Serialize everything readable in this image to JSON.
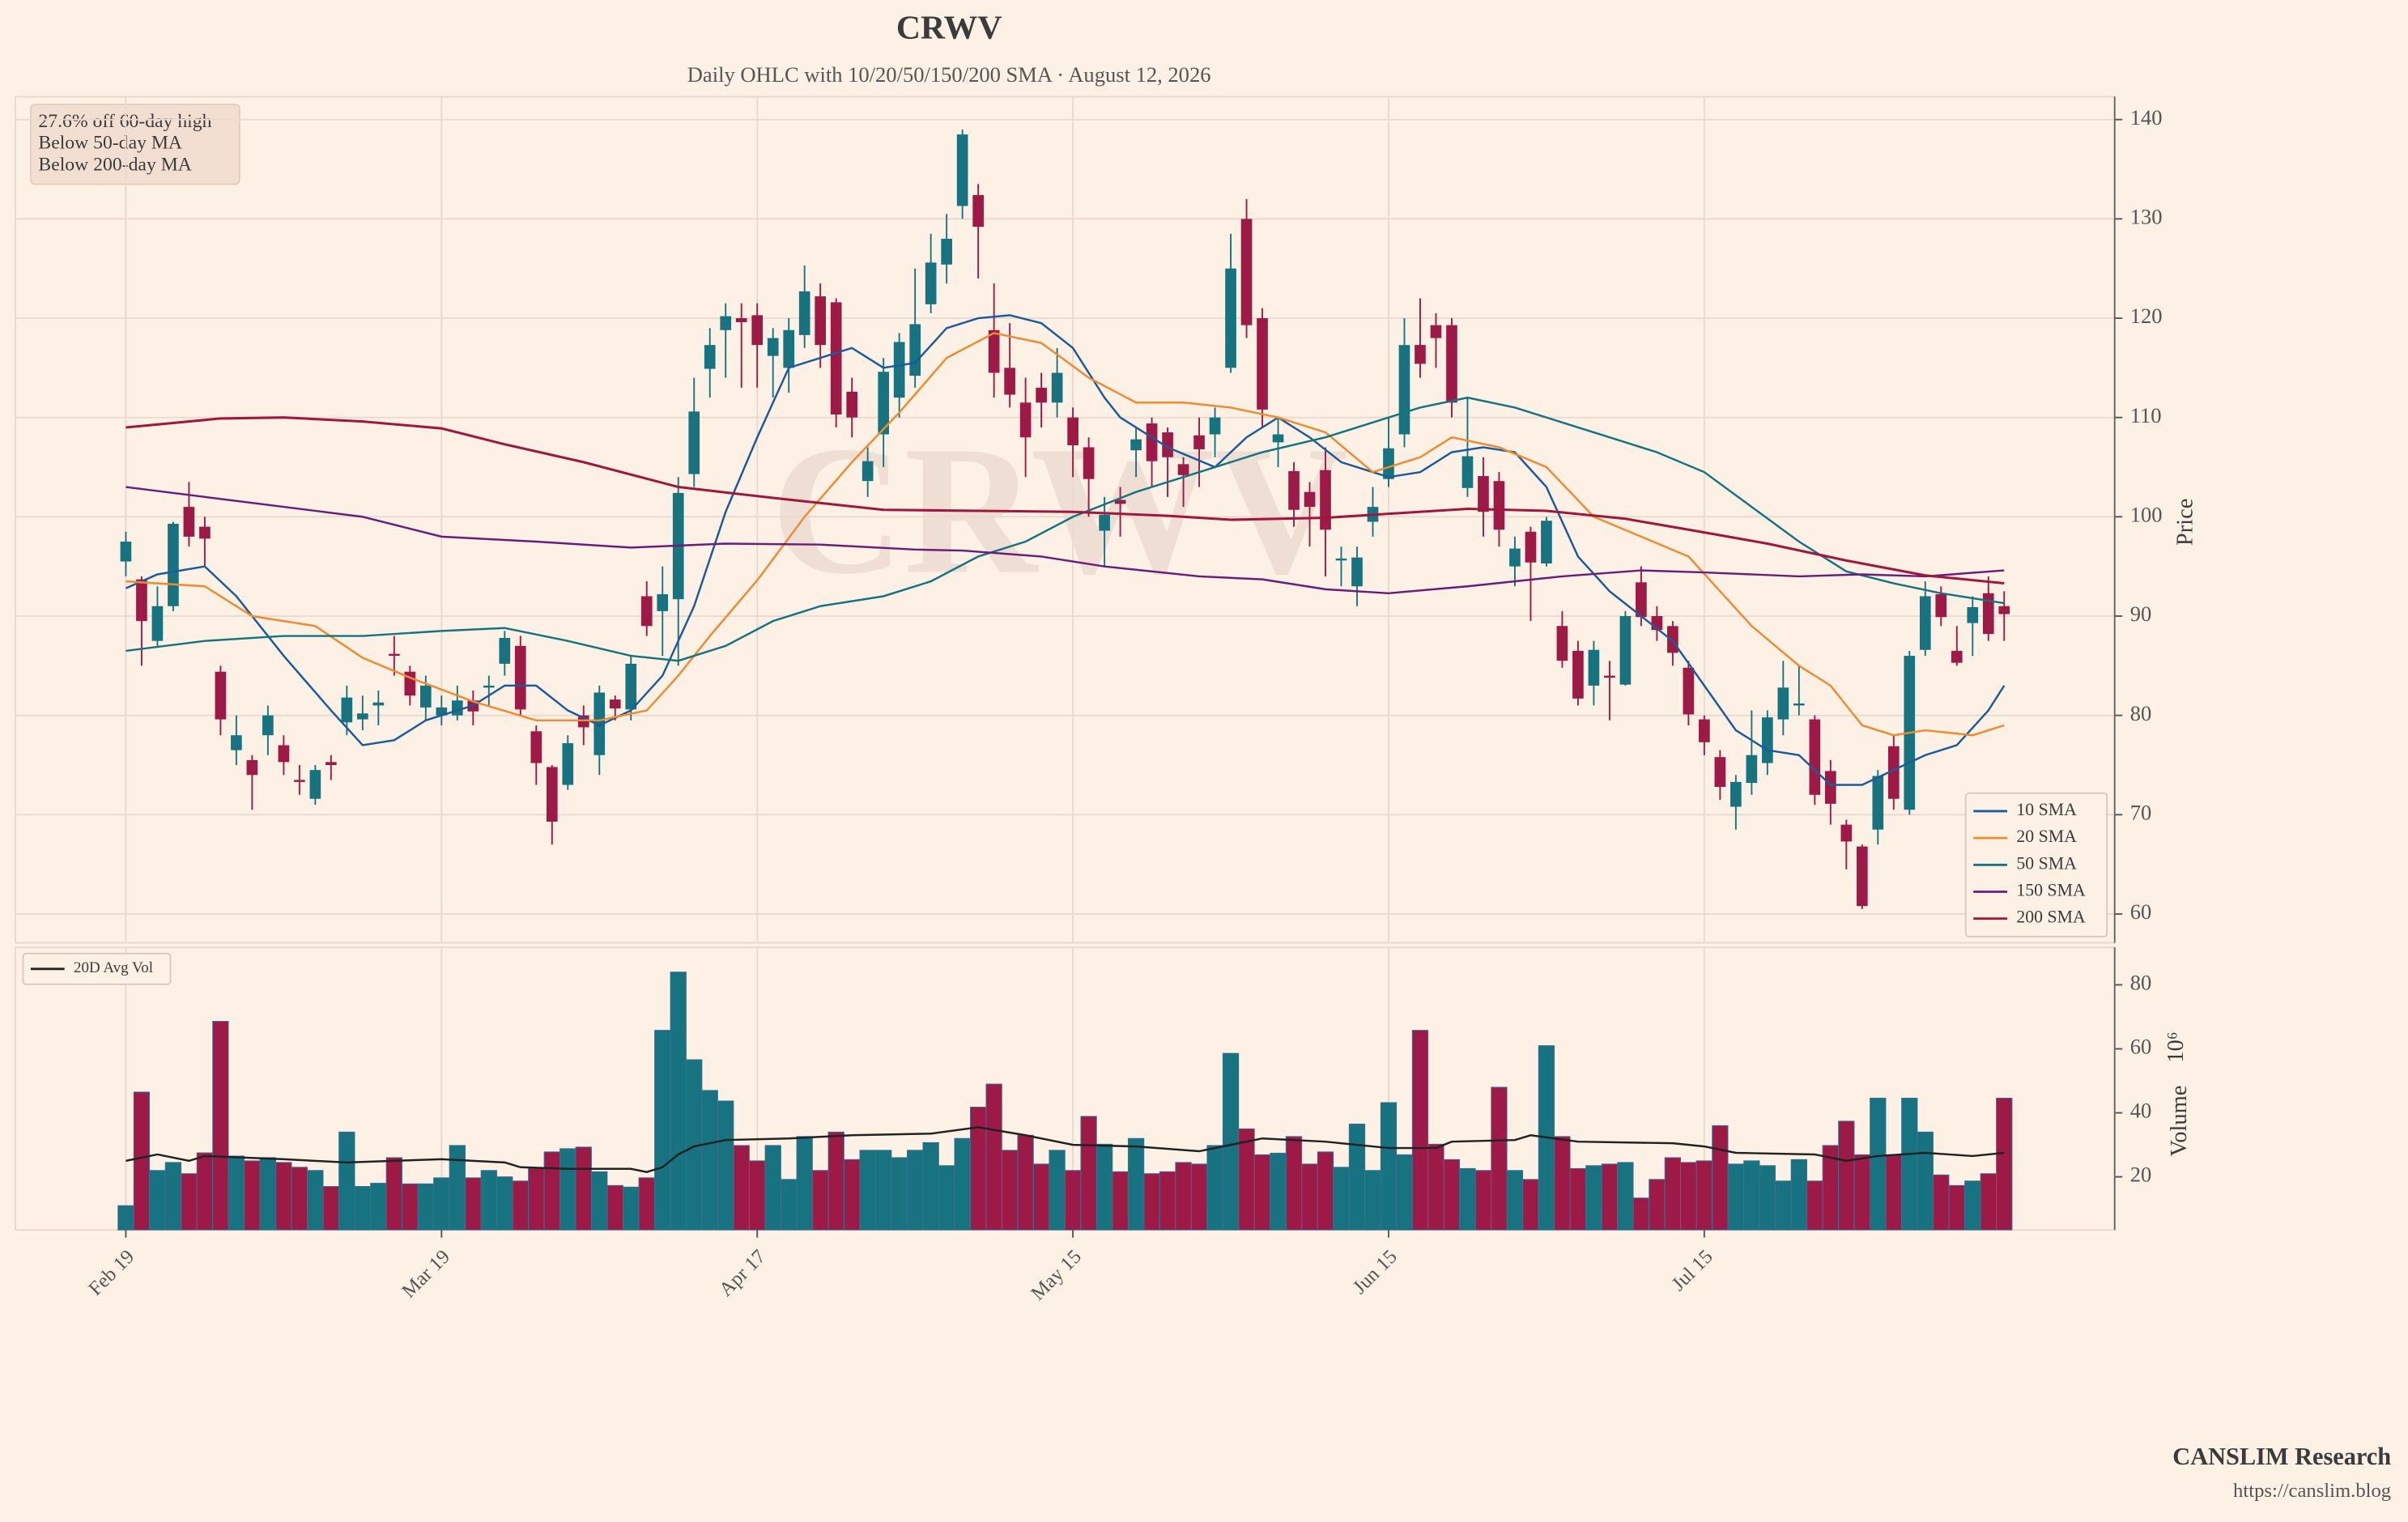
{
  "chart_data": [
    {
      "type": "candlestick",
      "title": "CRWV",
      "subtitle": "Daily OHLC with 10/20/50/150/200 SMA  ·  August 12, 2026",
      "watermark": "CRWV",
      "annotations": [
        "27.6% off 60-day high",
        "Below 50-day MA",
        "Below 200-day MA"
      ],
      "ylabel": "Price",
      "xlim": [
        -7,
        126
      ],
      "xticks": [
        0,
        20,
        40,
        60,
        80,
        100
      ],
      "ylim": [
        57.1,
        142.3
      ],
      "yticks": [
        60,
        70,
        80,
        90,
        100,
        110,
        120,
        130,
        140
      ],
      "grid": true,
      "legend": "lower right",
      "up_color": "#16737f",
      "down_color": "#9c1a45",
      "open": [
        95.5,
        93.7,
        87.5,
        91,
        101,
        99,
        84.4,
        76.5,
        75.5,
        78,
        77,
        73.5,
        71.6,
        75.3,
        79.3,
        79.6,
        81,
        86.2,
        84.4,
        80.8,
        80,
        80,
        81.5,
        82.8,
        85.2,
        87,
        78.4,
        74.8,
        73,
        80,
        76,
        81.6,
        80.6,
        92,
        90.5,
        91.7,
        104.3,
        114.9,
        118.8,
        120,
        120.3,
        116.2,
        115,
        118.3,
        122.2,
        121.6,
        112.6,
        103.6,
        108.3,
        112,
        114.2,
        121.4,
        125.4,
        131.3,
        132.4,
        118.8,
        115,
        111.5,
        113,
        111.5,
        110,
        107,
        98.6,
        101.7,
        106.7,
        109.4,
        108.5,
        105.3,
        108.2,
        108.3,
        115,
        130,
        120,
        107.5,
        104.6,
        102.5,
        104.7,
        95.6,
        93,
        99.5,
        103.8,
        108.3,
        117.3,
        119.3,
        119.3,
        102.9,
        104.1,
        103.6,
        95,
        98.5,
        95.3,
        89,
        86.5,
        83,
        84,
        83.1,
        93.4,
        90,
        89,
        84.8,
        79.6,
        75.8,
        70.8,
        73.2,
        75.2,
        79.6,
        81,
        79.6,
        74.4,
        69,
        66.8,
        68.5,
        76.9,
        70.5,
        86.6,
        92.2,
        86.5,
        89.3,
        92.3,
        91
      ],
      "high": [
        98.5,
        94,
        93,
        99.5,
        103.5,
        100,
        85,
        80,
        76,
        81,
        78,
        75,
        75,
        76,
        83,
        82,
        82.5,
        88,
        85,
        84,
        82,
        83,
        82.5,
        84,
        88.5,
        88,
        79,
        75,
        78,
        81,
        83,
        82,
        86,
        93.5,
        95,
        104,
        114,
        119,
        121.5,
        121.5,
        121.5,
        119,
        120,
        125.3,
        123.5,
        122,
        114,
        107,
        116,
        118.5,
        125,
        128.5,
        130.5,
        139,
        133.5,
        123.5,
        119.5,
        114,
        114.5,
        117,
        111,
        108,
        102,
        103,
        109,
        110,
        109,
        106,
        110,
        111,
        128.5,
        132,
        121,
        110,
        105.5,
        103.5,
        107,
        97,
        97,
        103,
        110,
        120,
        122,
        120.5,
        120,
        112,
        106,
        104.5,
        98,
        99,
        100,
        90.5,
        87.5,
        87.5,
        85.5,
        90.5,
        95,
        91,
        89.5,
        85.5,
        80,
        76.5,
        74,
        80.5,
        80.5,
        85.5,
        85,
        80,
        75.5,
        69.5,
        67,
        74.5,
        78,
        86.5,
        93.5,
        93,
        89,
        92,
        94,
        92.5
      ],
      "low": [
        94,
        85,
        87,
        90.5,
        97,
        95,
        78,
        75,
        70.5,
        76,
        74,
        72,
        71,
        73.5,
        78,
        78.5,
        79,
        84,
        81,
        79.5,
        79,
        79.5,
        79,
        81,
        84,
        80,
        73,
        67,
        72.5,
        77,
        74,
        79.5,
        79.5,
        88,
        86,
        85,
        103,
        112,
        114,
        113,
        113,
        112,
        112.5,
        117,
        115,
        109,
        108,
        102,
        105,
        110,
        113,
        120.5,
        123.5,
        130,
        124,
        112,
        111,
        104,
        109,
        110,
        104,
        100,
        95,
        98,
        104,
        103,
        102,
        101,
        103,
        106,
        114.5,
        118,
        109,
        105,
        99,
        97,
        94,
        93,
        91,
        98,
        103,
        107,
        114,
        115,
        110,
        102,
        98,
        97,
        93,
        89.5,
        95,
        84.8,
        81,
        81,
        79.5,
        83,
        89,
        87.5,
        85,
        79,
        76,
        71.5,
        68.5,
        72,
        74,
        78,
        80,
        71,
        69,
        64.5,
        60.5,
        67,
        70.5,
        70,
        86,
        89,
        85,
        86,
        87.5,
        87.5
      ],
      "close": [
        97.5,
        89.5,
        91,
        99.3,
        98,
        97.8,
        79.6,
        78,
        74,
        80,
        75.3,
        73.3,
        74.5,
        75,
        81.8,
        80.2,
        81.3,
        86,
        82,
        83,
        80.8,
        81.5,
        80.4,
        83,
        87.8,
        80.6,
        75.2,
        69.3,
        77.2,
        78.8,
        82.3,
        80.7,
        85.2,
        89,
        92.2,
        102.4,
        110.6,
        117.3,
        120.2,
        119.6,
        117.3,
        118,
        118.8,
        122.7,
        117.3,
        110.3,
        110,
        105.6,
        114.6,
        117.6,
        119.4,
        125.6,
        128,
        138.5,
        129.2,
        114.5,
        112.3,
        108,
        111.5,
        114.5,
        107.2,
        103.8,
        100.2,
        101.3,
        107.8,
        105.6,
        106,
        104.2,
        106.8,
        110,
        125,
        119.3,
        110.8,
        108.3,
        100.7,
        101,
        98.7,
        95.8,
        95.9,
        101,
        106.9,
        117.3,
        115.4,
        118,
        111.5,
        106.1,
        100.5,
        98.7,
        96.8,
        95.4,
        99.6,
        85.5,
        81.7,
        86.6,
        83.8,
        90,
        89.9,
        88.6,
        86.3,
        80.1,
        77.3,
        72.8,
        73.3,
        76,
        79.8,
        82.8,
        81.2,
        72,
        71.1,
        67.3,
        60.8,
        73.9,
        71.6,
        86,
        92,
        89.9,
        85.3,
        90.9,
        88.2,
        90.2
      ],
      "series": [
        {
          "name": "10 SMA",
          "color": "#1d5a9c",
          "x": [
            0,
            2,
            5,
            7,
            10,
            13,
            15,
            17,
            19,
            22,
            24,
            26,
            28,
            30,
            32,
            34,
            36,
            38,
            40,
            42,
            44,
            46,
            48,
            50,
            52,
            54,
            56,
            58,
            60,
            62,
            63,
            66,
            69,
            71,
            73,
            75,
            77,
            79,
            80,
            82,
            84,
            86,
            88,
            90,
            92,
            94,
            96,
            98,
            100,
            102,
            104,
            106,
            108,
            110,
            112,
            114,
            116,
            118,
            119
          ],
          "values": [
            92.8,
            94.2,
            95,
            92,
            86,
            80.5,
            77,
            77.5,
            79.5,
            81,
            83,
            83,
            80.5,
            79,
            80.5,
            84,
            91,
            100.5,
            108,
            115,
            116,
            117,
            115,
            115.5,
            119,
            120,
            120.3,
            119.5,
            117,
            112,
            110,
            107,
            105,
            108,
            110,
            108,
            105.5,
            104.5,
            104,
            104.5,
            106.5,
            107,
            106.5,
            103,
            96,
            92.5,
            90,
            87.5,
            83,
            78.5,
            76.5,
            76,
            73,
            73,
            74.5,
            76,
            77,
            80.5,
            83
          ]
        },
        {
          "name": "20 SMA",
          "color": "#f28a2e",
          "x": [
            0,
            5,
            8,
            12,
            15,
            18,
            22,
            26,
            30,
            33,
            35,
            37,
            40,
            43,
            46,
            49,
            52,
            55,
            58,
            61,
            64,
            67,
            70,
            73,
            76,
            79,
            82,
            84,
            87,
            90,
            93,
            96,
            99,
            103,
            106,
            108,
            110,
            112,
            114,
            117,
            119
          ],
          "values": [
            93.5,
            93,
            90,
            89,
            85.8,
            83.8,
            81.4,
            79.5,
            79.5,
            80.5,
            84,
            88,
            93.6,
            100,
            105.5,
            110.5,
            116,
            118.5,
            117.5,
            114,
            111.5,
            111.5,
            111,
            110,
            108.5,
            104.5,
            106,
            108,
            107,
            105,
            100,
            98,
            96,
            89,
            85,
            83,
            79,
            78,
            78.5,
            78,
            79
          ]
        },
        {
          "name": "50 SMA",
          "color": "#16737f",
          "x": [
            0,
            5,
            10,
            15,
            20,
            24,
            28,
            32,
            35,
            38,
            41,
            44,
            48,
            51,
            54,
            57,
            60,
            64,
            68,
            72,
            76,
            79,
            82,
            85,
            88,
            91,
            95,
            97,
            100,
            103,
            106,
            109,
            112,
            115,
            119
          ],
          "values": [
            86.5,
            87.5,
            88,
            88,
            88.5,
            88.8,
            87.5,
            86,
            85.5,
            87,
            89.5,
            91,
            92,
            93.5,
            96,
            97.5,
            100,
            102.5,
            104.5,
            106.5,
            108,
            109.5,
            111,
            112,
            111,
            109.5,
            107.5,
            106.5,
            104.5,
            101,
            97.5,
            94.5,
            93.3,
            92.3,
            91.3
          ]
        },
        {
          "name": "150 SMA",
          "color": "#6b1c78",
          "x": [
            0,
            5,
            10,
            15,
            20,
            26,
            32,
            38,
            44,
            50,
            53,
            58,
            62,
            68,
            72,
            76,
            80,
            85,
            91,
            96,
            100,
            106,
            110,
            114,
            119
          ],
          "values": [
            103,
            102,
            101,
            100,
            98,
            97.5,
            96.9,
            97.3,
            97.2,
            96.7,
            96.6,
            96,
            95,
            94,
            93.7,
            92.7,
            92.3,
            93,
            94,
            94.6,
            94.4,
            94,
            94.2,
            94,
            94.6
          ]
        },
        {
          "name": "200 SMA",
          "color": "#a0173e",
          "x": [
            0,
            6,
            10,
            15,
            20,
            24,
            29,
            35,
            41,
            48,
            54,
            60,
            66,
            70,
            76,
            80,
            85,
            90,
            95,
            99,
            104,
            109,
            114,
            119
          ],
          "values": [
            109,
            109.9,
            110,
            109.6,
            108.9,
            107.3,
            105.5,
            103,
            101.9,
            100.7,
            100.6,
            100.5,
            100.1,
            99.7,
            99.9,
            100.3,
            100.8,
            100.6,
            99.8,
            98.7,
            97.3,
            95.6,
            94.1,
            93.3
          ]
        }
      ]
    },
    {
      "type": "bar",
      "ylabel": "Volume",
      "scale_label": "10⁶",
      "xlim": [
        -7,
        126
      ],
      "xticks": [
        {
          "value": 0,
          "label": "Feb 19"
        },
        {
          "value": 20,
          "label": "Mar 19"
        },
        {
          "value": 40,
          "label": "Apr 17"
        },
        {
          "value": 60,
          "label": "May 15"
        },
        {
          "value": 80,
          "label": "Jun 15"
        },
        {
          "value": 100,
          "label": "Jul 15"
        }
      ],
      "ylim": [
        3.4,
        91.7
      ],
      "yticks": [
        20,
        40,
        60,
        80
      ],
      "grid": "x",
      "legend": "upper left",
      "values": [
        11,
        46.5,
        22,
        24.5,
        21,
        27.5,
        68.6,
        26.5,
        25,
        26,
        24.5,
        23,
        22,
        17,
        34,
        17,
        18,
        26,
        17.8,
        17.8,
        19.7,
        29.8,
        19.7,
        22,
        20,
        18.7,
        22.6,
        27.8,
        28.8,
        29.3,
        21.6,
        17.3,
        16.8,
        19.7,
        65.8,
        84,
        56.6,
        47,
        43.7,
        29.8,
        25,
        29.8,
        19.2,
        32.6,
        22,
        34,
        25.4,
        28.3,
        28.3,
        26,
        28.3,
        30.7,
        23.5,
        32,
        41.8,
        49,
        28.3,
        33,
        24,
        28.3,
        22,
        38.9,
        30.2,
        21.6,
        32,
        21,
        21.6,
        24.5,
        24,
        29.8,
        58.6,
        35,
        26.9,
        27.4,
        32.6,
        24,
        27.8,
        23,
        36.5,
        22,
        43.2,
        26.9,
        65.8,
        30.2,
        25.4,
        22.6,
        22,
        48,
        22,
        19.2,
        61,
        32.6,
        22.6,
        23.5,
        24,
        24.5,
        13.4,
        19.2,
        26,
        24.5,
        25,
        36,
        24,
        25,
        23.5,
        18.7,
        25.4,
        18.7,
        29.8,
        37.4,
        26.9,
        44.6,
        26.9,
        44.6,
        34,
        20.6,
        17.3,
        18.7,
        21,
        44.6
      ],
      "series": [
        {
          "name": "20D Avg Vol",
          "color": "#222222",
          "x": [
            0,
            2,
            4,
            5,
            10,
            14,
            17,
            20,
            24,
            25,
            28,
            32,
            33,
            34,
            35,
            36,
            38,
            42,
            46,
            51,
            54,
            57,
            60,
            64,
            68,
            70,
            72,
            76,
            80,
            83,
            84,
            88,
            89,
            92,
            98,
            100,
            102,
            107,
            109,
            111,
            114,
            117,
            119
          ],
          "values": [
            25,
            27,
            25,
            26.5,
            25.5,
            24.5,
            25,
            25.5,
            24.5,
            23,
            22.5,
            22.5,
            21.5,
            23,
            27,
            29.5,
            31.5,
            32,
            33,
            33.5,
            35.5,
            33,
            30,
            29.5,
            28,
            30,
            32,
            31,
            29,
            29,
            31,
            31.5,
            33,
            31,
            30.5,
            29.5,
            27.5,
            27,
            25,
            26.5,
            27.5,
            26.5,
            27.5
          ]
        }
      ]
    }
  ],
  "footer": {
    "brand": "CANSLIM Research",
    "url": "https://canslim.blog"
  }
}
